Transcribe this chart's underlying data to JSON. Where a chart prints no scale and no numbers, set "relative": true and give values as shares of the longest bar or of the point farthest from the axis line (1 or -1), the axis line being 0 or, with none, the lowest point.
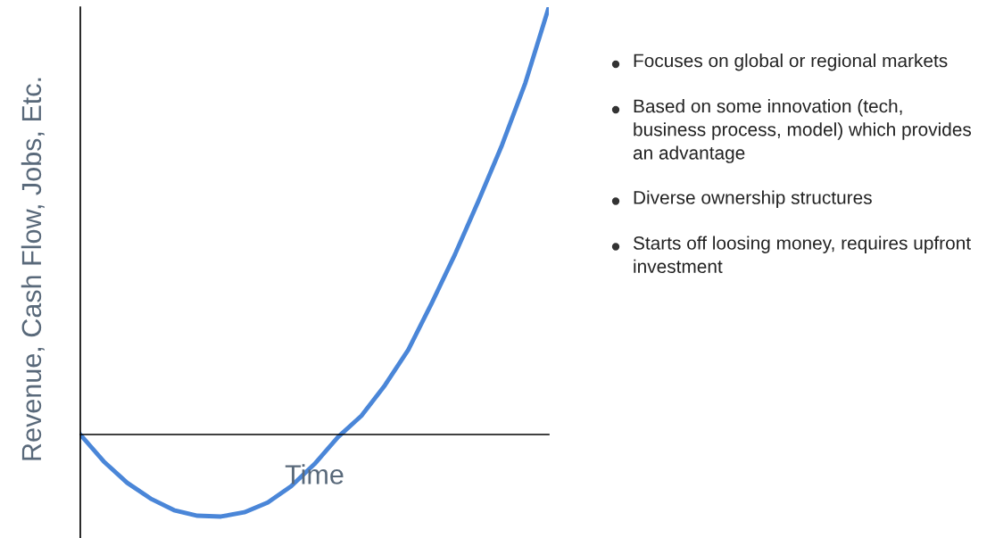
{
  "chart_data": {
    "type": "line",
    "relative": true,
    "xlabel": "Time",
    "ylabel": "Revenue, Cash Flow, Jobs, Etc.",
    "categories": [
      null,
      null,
      null,
      null,
      null,
      null,
      null,
      null,
      null,
      null,
      null,
      null,
      null,
      null,
      null,
      null,
      null,
      null,
      null,
      null,
      null
    ],
    "series": [
      {
        "color": "#4a86d8",
        "values": [
          0,
          -0.063,
          -0.113,
          -0.15,
          -0.177,
          -0.19,
          -0.192,
          -0.182,
          -0.159,
          -0.121,
          -0.069,
          -0.006,
          0.044,
          0.115,
          0.198,
          0.307,
          0.422,
          0.547,
          0.677,
          0.823,
          1
        ]
      }
    ],
    "annotations": [
      "Focuses on global or regional markets",
      "Based on some innovation (tech, business process, model) which provides an advantage",
      "Diverse ownership structures",
      "Starts off loosing money, requires upfront investment"
    ],
    "legend": false,
    "marker": "none",
    "line_style": "solid"
  }
}
